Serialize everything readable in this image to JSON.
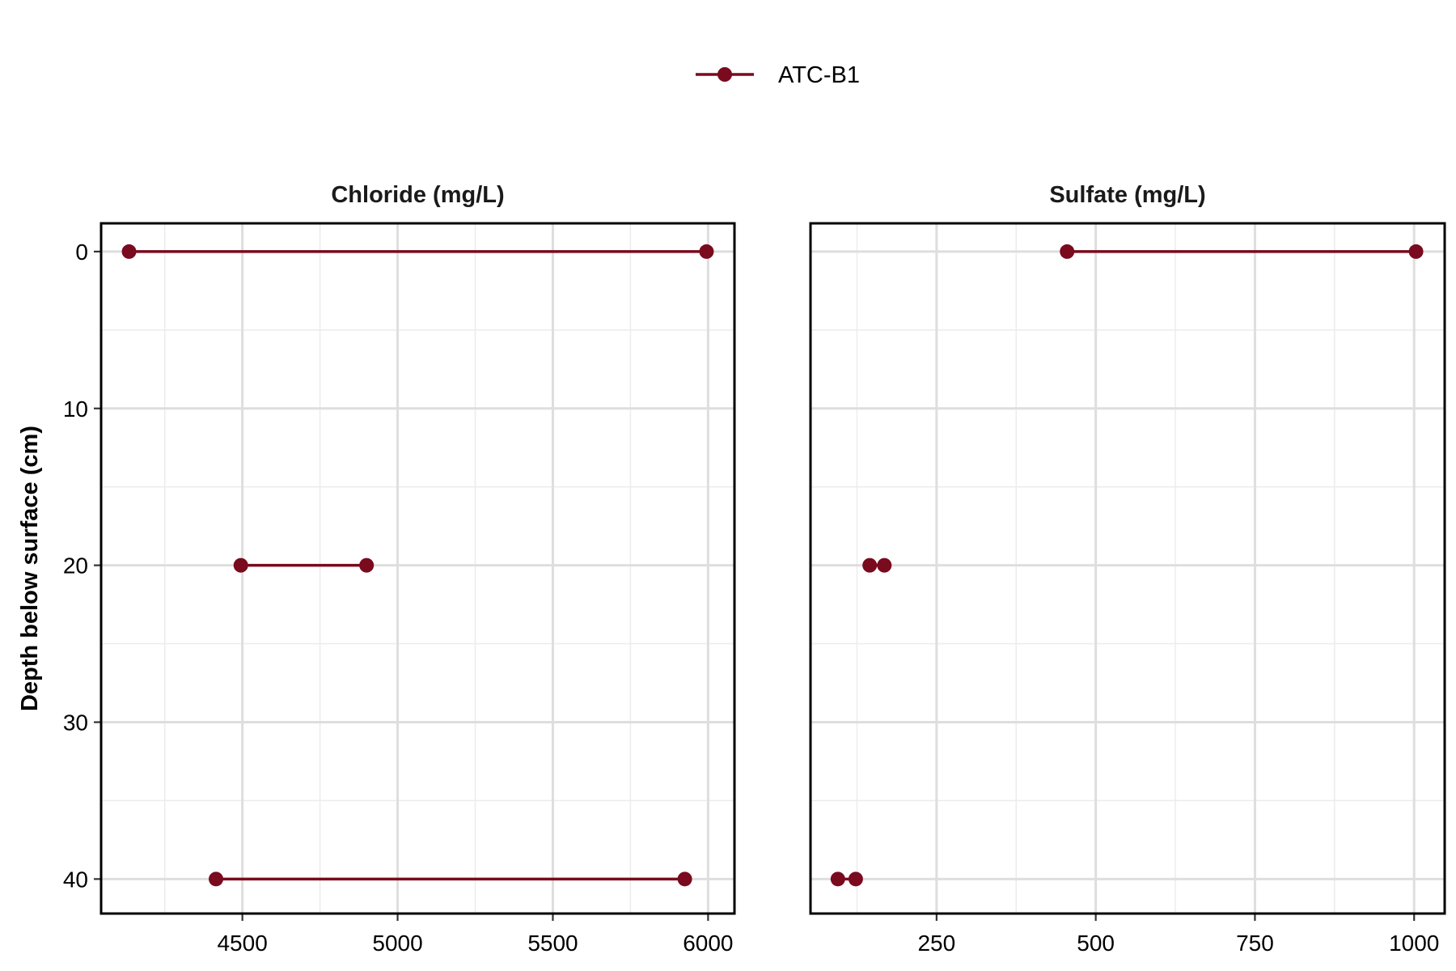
{
  "chart_data": {
    "type": "line",
    "orientation": "horizontal-profile",
    "legend": {
      "placement": "top-center",
      "entries": [
        {
          "label": "ATC-B1",
          "color": "#7a0a1e",
          "marker": "point-line"
        }
      ]
    },
    "y_axis": {
      "label": "Depth below surface (cm)",
      "reversed": true,
      "range": [
        -1.8,
        42.2
      ],
      "ticks": [
        0,
        10,
        20,
        30,
        40
      ],
      "tick_labels": [
        "0",
        "10",
        "20",
        "30",
        "40"
      ],
      "minor_ticks": [
        5,
        15,
        25,
        35
      ]
    },
    "grid": true,
    "panels": [
      {
        "title": "Chloride (mg/L)",
        "xlim": [
          4045,
          6085
        ],
        "x_ticks": [
          4500,
          5000,
          5500,
          6000
        ],
        "x_tick_labels": [
          "4500",
          "5000",
          "5500",
          "6000"
        ],
        "x_minor_ticks": [
          4250,
          4750,
          5250,
          5750
        ],
        "series": [
          {
            "name": "ATC-B1",
            "color": "#7a0a1e",
            "points": [
              {
                "depth": 0,
                "value": 4135
              },
              {
                "depth": 0,
                "value": 5995
              },
              {
                "depth": 20,
                "value": 4495
              },
              {
                "depth": 20,
                "value": 4900
              },
              {
                "depth": 40,
                "value": 4415
              },
              {
                "depth": 40,
                "value": 5925
              }
            ]
          }
        ]
      },
      {
        "title": "Sulfate (mg/L)",
        "xlim": [
          52,
          1048
        ],
        "x_ticks": [
          250,
          500,
          750,
          1000
        ],
        "x_tick_labels": [
          "250",
          "500",
          "750",
          "1000"
        ],
        "x_minor_ticks": [
          125,
          375,
          625,
          875
        ],
        "series": [
          {
            "name": "ATC-B1",
            "color": "#7a0a1e",
            "points": [
              {
                "depth": 0,
                "value": 455
              },
              {
                "depth": 0,
                "value": 1003
              },
              {
                "depth": 20,
                "value": 145
              },
              {
                "depth": 20,
                "value": 168
              },
              {
                "depth": 40,
                "value": 95
              },
              {
                "depth": 40,
                "value": 123
              }
            ]
          }
        ]
      }
    ]
  }
}
